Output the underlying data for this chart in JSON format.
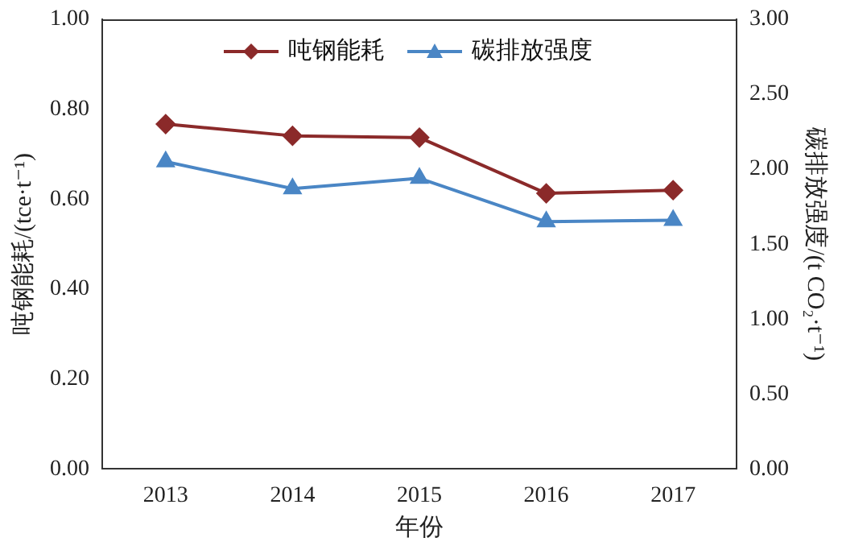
{
  "chart_data": {
    "type": "line",
    "xlabel": "年份",
    "ylabel": "吨钢能耗/(tce·t⁻¹)",
    "y2label": "碳排放强度/(t CO₂·t⁻¹)",
    "categories": [
      "2013",
      "2014",
      "2015",
      "2016",
      "2017"
    ],
    "series": [
      {
        "name": "吨钢能耗",
        "color": "#8b2a2a",
        "marker": "diamond",
        "values": [
          0.767,
          0.741,
          0.737,
          0.613,
          0.62
        ]
      },
      {
        "name": "碳排放强度",
        "color": "#4a86c5",
        "marker": "triangle",
        "axis": "y2",
        "values": [
          2.05,
          1.87,
          1.94,
          1.65,
          1.66
        ]
      }
    ],
    "ylim": [
      0,
      1
    ],
    "yticks": [
      {
        "value": 0,
        "label": "0.00"
      },
      {
        "value": 0.2,
        "label": "0.20"
      },
      {
        "value": 0.4,
        "label": "0.40"
      },
      {
        "value": 0.6,
        "label": "0.60"
      },
      {
        "value": 0.8,
        "label": "0.80"
      },
      {
        "value": 1,
        "label": "1.00"
      }
    ],
    "y2lim": [
      0,
      3
    ],
    "y2ticks": [
      {
        "value": 0,
        "label": "0.00"
      },
      {
        "value": 0.5,
        "label": "0.50"
      },
      {
        "value": 1,
        "label": "1.00"
      },
      {
        "value": 1.5,
        "label": "1.50"
      },
      {
        "value": 2,
        "label": "2.00"
      },
      {
        "value": 2.5,
        "label": "2.50"
      },
      {
        "value": 3,
        "label": "3.00"
      }
    ],
    "grid": false,
    "legend": "top",
    "line_style": "solid"
  }
}
